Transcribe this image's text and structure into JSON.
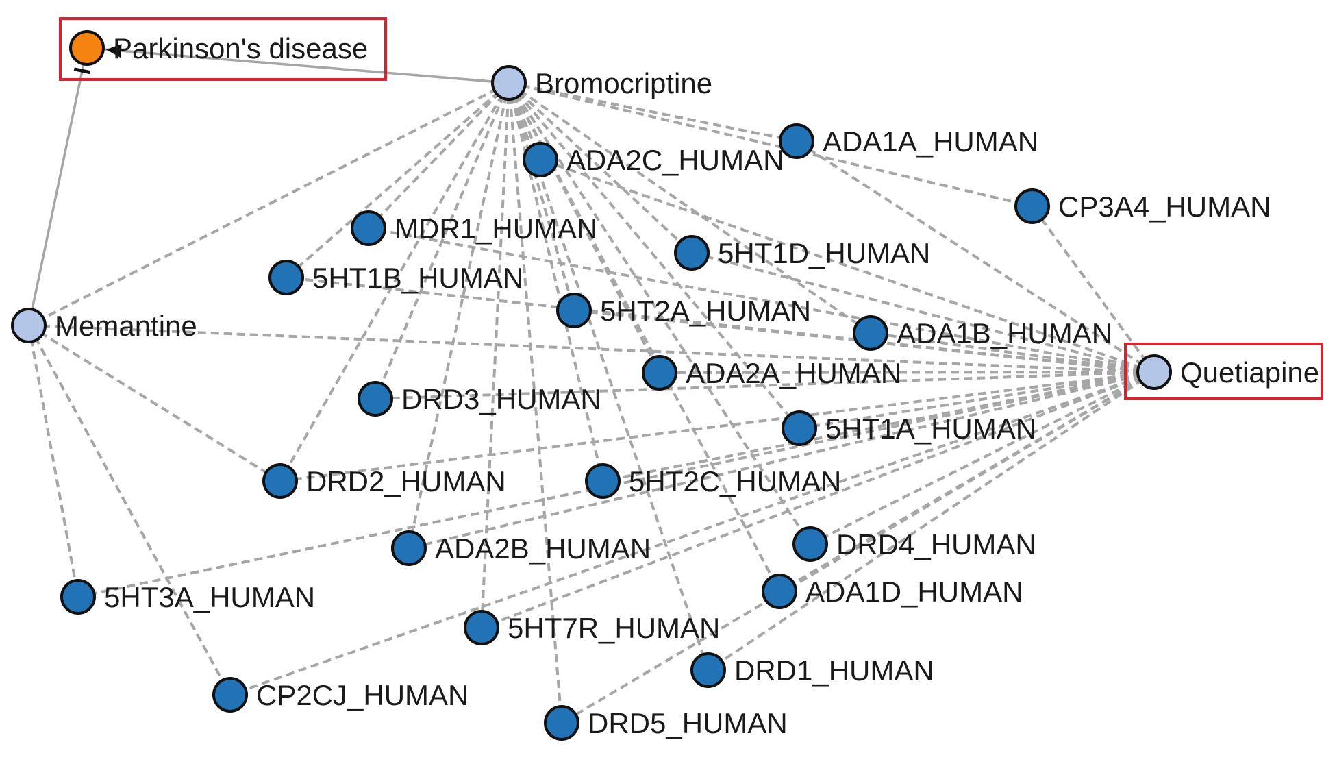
{
  "colors": {
    "disease": "#f5830f",
    "drug": "#b3c6e8",
    "target": "#2272b6",
    "node_stroke": "#111111",
    "interaction_edge": "#a6a6a6",
    "association_edge": "#a6a6a6",
    "highlight_box": "#d9232e"
  },
  "nodes": [
    {
      "id": "parkinsons",
      "label": "Parkinson's disease",
      "kind": "disease",
      "highlighted": true
    },
    {
      "id": "bromocriptine",
      "label": "Bromocriptine",
      "kind": "drug"
    },
    {
      "id": "memantine",
      "label": "Memantine",
      "kind": "drug"
    },
    {
      "id": "quetiapine",
      "label": "Quetiapine",
      "kind": "drug",
      "highlighted": true
    },
    {
      "id": "ada1a",
      "label": "ADA1A_HUMAN",
      "kind": "target"
    },
    {
      "id": "ada2c",
      "label": "ADA2C_HUMAN",
      "kind": "target"
    },
    {
      "id": "cp3a4",
      "label": "CP3A4_HUMAN",
      "kind": "target"
    },
    {
      "id": "mdr1",
      "label": "MDR1_HUMAN",
      "kind": "target"
    },
    {
      "id": "5ht1d",
      "label": "5HT1D_HUMAN",
      "kind": "target"
    },
    {
      "id": "5ht1b",
      "label": "5HT1B_HUMAN",
      "kind": "target"
    },
    {
      "id": "5ht2a",
      "label": "5HT2A_HUMAN",
      "kind": "target"
    },
    {
      "id": "ada1b",
      "label": "ADA1B_HUMAN",
      "kind": "target"
    },
    {
      "id": "ada2a",
      "label": "ADA2A_HUMAN",
      "kind": "target"
    },
    {
      "id": "drd3",
      "label": "DRD3_HUMAN",
      "kind": "target"
    },
    {
      "id": "5ht1a",
      "label": "5HT1A_HUMAN",
      "kind": "target"
    },
    {
      "id": "drd2",
      "label": "DRD2_HUMAN",
      "kind": "target"
    },
    {
      "id": "5ht2c",
      "label": "5HT2C_HUMAN",
      "kind": "target"
    },
    {
      "id": "ada2b",
      "label": "ADA2B_HUMAN",
      "kind": "target"
    },
    {
      "id": "drd4",
      "label": "DRD4_HUMAN",
      "kind": "target"
    },
    {
      "id": "5ht3a",
      "label": "5HT3A_HUMAN",
      "kind": "target"
    },
    {
      "id": "ada1d",
      "label": "ADA1D_HUMAN",
      "kind": "target"
    },
    {
      "id": "5ht7r",
      "label": "5HT7R_HUMAN",
      "kind": "target"
    },
    {
      "id": "drd1",
      "label": "DRD1_HUMAN",
      "kind": "target"
    },
    {
      "id": "cp2cj",
      "label": "CP2CJ_HUMAN",
      "kind": "target"
    },
    {
      "id": "drd5",
      "label": "DRD5_HUMAN",
      "kind": "target"
    }
  ],
  "edges": [
    {
      "source": "bromocriptine",
      "target": "parkinsons",
      "style": "arrow"
    },
    {
      "source": "memantine",
      "target": "parkinsons",
      "style": "inhibit"
    },
    {
      "source": "bromocriptine",
      "target": "ada1a",
      "style": "dashed"
    },
    {
      "source": "bromocriptine",
      "target": "ada2c",
      "style": "dashed"
    },
    {
      "source": "bromocriptine",
      "target": "cp3a4",
      "style": "dashed"
    },
    {
      "source": "bromocriptine",
      "target": "mdr1",
      "style": "dashed"
    },
    {
      "source": "bromocriptine",
      "target": "5ht1d",
      "style": "dashed"
    },
    {
      "source": "bromocriptine",
      "target": "5ht1b",
      "style": "dashed"
    },
    {
      "source": "bromocriptine",
      "target": "5ht2a",
      "style": "dashed"
    },
    {
      "source": "bromocriptine",
      "target": "ada1b",
      "style": "dashed"
    },
    {
      "source": "bromocriptine",
      "target": "ada2a",
      "style": "dashed"
    },
    {
      "source": "bromocriptine",
      "target": "drd3",
      "style": "dashed"
    },
    {
      "source": "bromocriptine",
      "target": "5ht1a",
      "style": "dashed"
    },
    {
      "source": "bromocriptine",
      "target": "drd2",
      "style": "dashed"
    },
    {
      "source": "bromocriptine",
      "target": "5ht2c",
      "style": "dashed"
    },
    {
      "source": "bromocriptine",
      "target": "ada2b",
      "style": "dashed"
    },
    {
      "source": "bromocriptine",
      "target": "drd4",
      "style": "dashed"
    },
    {
      "source": "bromocriptine",
      "target": "ada1d",
      "style": "dashed"
    },
    {
      "source": "bromocriptine",
      "target": "5ht7r",
      "style": "dashed"
    },
    {
      "source": "bromocriptine",
      "target": "drd1",
      "style": "dashed"
    },
    {
      "source": "bromocriptine",
      "target": "drd5",
      "style": "dashed"
    },
    {
      "source": "bromocriptine",
      "target": "memantine",
      "style": "dashed"
    },
    {
      "source": "memantine",
      "target": "quetiapine",
      "style": "dashed"
    },
    {
      "source": "memantine",
      "target": "drd2",
      "style": "dashed"
    },
    {
      "source": "memantine",
      "target": "5ht3a",
      "style": "dashed"
    },
    {
      "source": "memantine",
      "target": "cp2cj",
      "style": "dashed"
    },
    {
      "source": "quetiapine",
      "target": "ada1a",
      "style": "dashed"
    },
    {
      "source": "quetiapine",
      "target": "ada2c",
      "style": "dashed"
    },
    {
      "source": "quetiapine",
      "target": "cp3a4",
      "style": "dashed"
    },
    {
      "source": "quetiapine",
      "target": "mdr1",
      "style": "dashed"
    },
    {
      "source": "quetiapine",
      "target": "5ht1d",
      "style": "dashed"
    },
    {
      "source": "quetiapine",
      "target": "5ht1b",
      "style": "dashed"
    },
    {
      "source": "quetiapine",
      "target": "5ht2a",
      "style": "dashed"
    },
    {
      "source": "quetiapine",
      "target": "ada1b",
      "style": "dashed"
    },
    {
      "source": "quetiapine",
      "target": "ada2a",
      "style": "dashed"
    },
    {
      "source": "quetiapine",
      "target": "drd3",
      "style": "dashed"
    },
    {
      "source": "quetiapine",
      "target": "5ht1a",
      "style": "dashed"
    },
    {
      "source": "quetiapine",
      "target": "drd2",
      "style": "dashed"
    },
    {
      "source": "quetiapine",
      "target": "5ht2c",
      "style": "dashed"
    },
    {
      "source": "quetiapine",
      "target": "ada2b",
      "style": "dashed"
    },
    {
      "source": "quetiapine",
      "target": "drd4",
      "style": "dashed"
    },
    {
      "source": "quetiapine",
      "target": "5ht3a",
      "style": "dashed"
    },
    {
      "source": "quetiapine",
      "target": "ada1d",
      "style": "dashed"
    },
    {
      "source": "quetiapine",
      "target": "5ht7r",
      "style": "dashed"
    },
    {
      "source": "quetiapine",
      "target": "drd1",
      "style": "dashed"
    },
    {
      "source": "quetiapine",
      "target": "cp2cj",
      "style": "dashed"
    },
    {
      "source": "quetiapine",
      "target": "drd5",
      "style": "dashed"
    }
  ]
}
